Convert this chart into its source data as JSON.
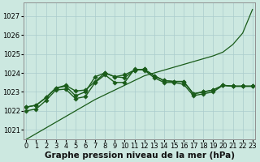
{
  "title": "",
  "xlabel": "Graphe pression niveau de la mer (hPa)",
  "ylabel": "",
  "bg_color": "#cce8e0",
  "plot_bg_color": "#cce8e0",
  "grid_color": "#aacccc",
  "line_color": "#1a5c1a",
  "ylim": [
    1020.5,
    1027.7
  ],
  "xlim": [
    -0.3,
    23.3
  ],
  "yticks": [
    1021,
    1022,
    1023,
    1024,
    1025,
    1026,
    1027
  ],
  "xticks": [
    0,
    1,
    2,
    3,
    4,
    5,
    6,
    7,
    8,
    9,
    10,
    11,
    12,
    13,
    14,
    15,
    16,
    17,
    18,
    19,
    20,
    21,
    22,
    23
  ],
  "series_with_markers": [
    [
      1022.2,
      1022.3,
      1022.7,
      1023.2,
      1023.3,
      1022.8,
      1023.0,
      1023.8,
      1024.0,
      1023.8,
      1023.9,
      1024.15,
      1024.2,
      1023.85,
      1023.6,
      1023.55,
      1023.55,
      1022.9,
      1023.0,
      1023.1,
      1023.35,
      1023.3,
      1023.3,
      1023.3
    ],
    [
      1022.2,
      1022.3,
      1022.7,
      1023.2,
      1023.35,
      1023.05,
      1023.1,
      1023.55,
      1024.0,
      1023.8,
      1023.75,
      1024.15,
      1024.2,
      1023.85,
      1023.6,
      1023.55,
      1023.55,
      1022.9,
      1023.0,
      1023.1,
      1023.35,
      1023.3,
      1023.3,
      1023.3
    ],
    [
      1022.0,
      1022.1,
      1022.55,
      1023.1,
      1023.15,
      1022.65,
      1022.75,
      1023.5,
      1023.9,
      1023.5,
      1023.5,
      1024.2,
      1024.15,
      1023.75,
      1023.5,
      1023.5,
      1023.4,
      1022.8,
      1022.9,
      1023.0,
      1023.35,
      1023.3,
      1023.3,
      1023.3
    ]
  ],
  "diagonal_series": [
    1020.5,
    1020.8,
    1021.1,
    1021.4,
    1021.7,
    1022.0,
    1022.3,
    1022.6,
    1022.85,
    1023.1,
    1023.35,
    1023.6,
    1023.85,
    1024.0,
    1024.15,
    1024.3,
    1024.45,
    1024.6,
    1024.75,
    1024.9,
    1025.1,
    1025.5,
    1026.1,
    1027.35
  ],
  "marker": "D",
  "markersize": 2.8,
  "linewidth": 1.0,
  "linewidth_diag": 0.9,
  "xlabel_fontsize": 7.5,
  "tick_fontsize": 6.0
}
